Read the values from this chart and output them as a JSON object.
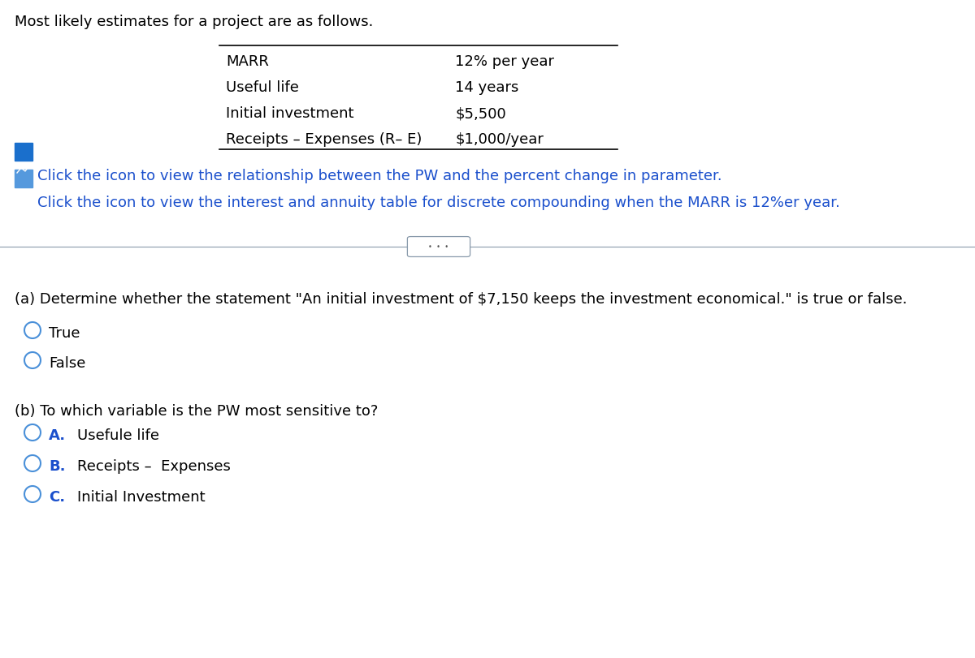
{
  "bg_color": "#ffffff",
  "intro_text": "Most likely estimates for a project are as follows.",
  "table_rows": [
    [
      "MARR",
      "12% per year"
    ],
    [
      "Useful life",
      "14 years"
    ],
    [
      "Initial investment",
      "$5,500"
    ],
    [
      "Receipts – Expenses (R– E)",
      "$1,000/year"
    ]
  ],
  "link1_text": "Click the icon to view the relationship between the PW and the percent change in parameter.",
  "link2_text": "Click the icon to view the interest and annuity table for discrete compounding when the MARR is 12%er year.",
  "link_color": "#1a4fcc",
  "separator_dots": "•  •  •",
  "part_a_text": "(a) Determine whether the statement \"An initial investment of $7,150 keeps the investment economical.\" is true or false.",
  "part_a_options": [
    "True",
    "False"
  ],
  "part_b_text": "(b) To which variable is the PW most sensitive to?",
  "part_b_options": [
    [
      "A.",
      "Usefule life"
    ],
    [
      "B.",
      "Receipts –  Expenses"
    ],
    [
      "C.",
      "Initial Investment"
    ]
  ],
  "text_color": "#000000",
  "option_label_color": "#1a4fcc",
  "icon1_color": "#1a6fcc",
  "icon2_color": "#4a90d9",
  "sep_line_color": "#8899aa",
  "sep_btn_color": "#8899aa",
  "radio_color": "#4a90d9",
  "fs_main": 13,
  "fs_table": 13,
  "fs_link": 13,
  "fs_part": 13,
  "fs_option": 13
}
